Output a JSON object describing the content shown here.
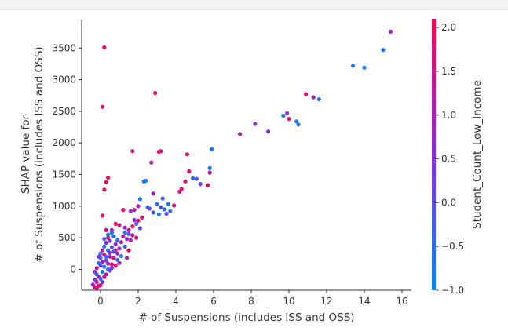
{
  "chart_data": {
    "type": "scatter",
    "title": "",
    "xlabel": "# of Suspensions (includes ISS and OSS)",
    "ylabel_lines": [
      "SHAP value for",
      "# of Suspensions (includes ISS and OSS)"
    ],
    "xlim": [
      -1,
      16.5
    ],
    "ylim": [
      -330,
      3950
    ],
    "xticks": [
      0,
      2,
      4,
      6,
      8,
      10,
      12,
      14,
      16
    ],
    "xtick_labels": [
      "0",
      "2",
      "4",
      "6",
      "8",
      "10",
      "12",
      "14",
      "16"
    ],
    "yticks": [
      0,
      500,
      1000,
      1500,
      2000,
      2500,
      3000,
      3500
    ],
    "ytick_labels": [
      "0",
      "500",
      "1000",
      "1500",
      "2000",
      "2500",
      "3000",
      "3500"
    ],
    "grid": false,
    "colorbar": {
      "label": "Student_Count_Low_Income",
      "range": [
        -1.0,
        2.1
      ],
      "ticks": [
        2.0,
        1.5,
        1.0,
        0.5,
        0.0,
        -0.5,
        -1.0
      ],
      "tick_labels": [
        "2.0",
        "1.5",
        "1.0",
        "0.5",
        "0.0",
        "−0.5",
        "−1.0"
      ],
      "color_low": "#008afb",
      "color_mid": "#8a2be2",
      "color_high": "#ff0052"
    },
    "points": [
      {
        "x": 15.4,
        "y": 3760,
        "c": 0.8
      },
      {
        "x": 15.0,
        "y": 3470,
        "c": -0.8
      },
      {
        "x": 13.4,
        "y": 3220,
        "c": -0.7
      },
      {
        "x": 14.0,
        "y": 3190,
        "c": -0.6
      },
      {
        "x": 0.2,
        "y": 3510,
        "c": 1.9
      },
      {
        "x": 0.1,
        "y": 2570,
        "c": 1.9
      },
      {
        "x": 2.9,
        "y": 2790,
        "c": 1.8
      },
      {
        "x": 10.9,
        "y": 2770,
        "c": 1.9
      },
      {
        "x": 11.3,
        "y": 2720,
        "c": 0.8
      },
      {
        "x": 11.6,
        "y": 2690,
        "c": -0.6
      },
      {
        "x": 9.9,
        "y": 2470,
        "c": 0.6
      },
      {
        "x": 9.7,
        "y": 2430,
        "c": -0.7
      },
      {
        "x": 10.0,
        "y": 2380,
        "c": 1.7
      },
      {
        "x": 10.4,
        "y": 2340,
        "c": -0.8
      },
      {
        "x": 10.5,
        "y": 2290,
        "c": -0.5
      },
      {
        "x": 8.2,
        "y": 2300,
        "c": 0.7
      },
      {
        "x": 8.9,
        "y": 2180,
        "c": 0.6
      },
      {
        "x": 7.4,
        "y": 2140,
        "c": 0.9
      },
      {
        "x": 5.9,
        "y": 1900,
        "c": -0.8
      },
      {
        "x": 1.7,
        "y": 1870,
        "c": 1.6
      },
      {
        "x": 3.1,
        "y": 1860,
        "c": 1.9
      },
      {
        "x": 3.2,
        "y": 1870,
        "c": 1.8
      },
      {
        "x": 4.6,
        "y": 1820,
        "c": 1.9
      },
      {
        "x": 2.7,
        "y": 1690,
        "c": 1.2
      },
      {
        "x": 5.8,
        "y": 1600,
        "c": -0.8
      },
      {
        "x": 5.8,
        "y": 1530,
        "c": 1.1
      },
      {
        "x": 4.7,
        "y": 1550,
        "c": 1.6
      },
      {
        "x": 4.9,
        "y": 1440,
        "c": -0.4
      },
      {
        "x": 5.1,
        "y": 1430,
        "c": -0.2
      },
      {
        "x": 4.5,
        "y": 1390,
        "c": 1.4
      },
      {
        "x": 5.3,
        "y": 1350,
        "c": 0.2
      },
      {
        "x": 5.7,
        "y": 1330,
        "c": 1.9
      },
      {
        "x": 4.3,
        "y": 1270,
        "c": 1.8
      },
      {
        "x": 4.2,
        "y": 1230,
        "c": 1.6
      },
      {
        "x": 0.4,
        "y": 1450,
        "c": 1.9
      },
      {
        "x": 0.3,
        "y": 1380,
        "c": 1.8
      },
      {
        "x": 0.2,
        "y": 1260,
        "c": 1.9
      },
      {
        "x": 2.4,
        "y": 1400,
        "c": -0.8
      },
      {
        "x": 2.3,
        "y": 1390,
        "c": -0.6
      },
      {
        "x": 2.8,
        "y": 1200,
        "c": 0.9
      },
      {
        "x": 3.3,
        "y": 1120,
        "c": -0.4
      },
      {
        "x": 2.1,
        "y": 1110,
        "c": -0.6
      },
      {
        "x": 3.0,
        "y": 1030,
        "c": -0.5
      },
      {
        "x": 3.6,
        "y": 1030,
        "c": -0.7
      },
      {
        "x": 3.9,
        "y": 1010,
        "c": 1.5
      },
      {
        "x": 2.5,
        "y": 980,
        "c": -0.8
      },
      {
        "x": 2.6,
        "y": 960,
        "c": 0.3
      },
      {
        "x": 3.2,
        "y": 980,
        "c": 0.0
      },
      {
        "x": 3.4,
        "y": 950,
        "c": -0.6
      },
      {
        "x": 3.7,
        "y": 920,
        "c": -0.7
      },
      {
        "x": 3.5,
        "y": 880,
        "c": 0.4
      },
      {
        "x": 2.8,
        "y": 900,
        "c": -0.3
      },
      {
        "x": 3.1,
        "y": 870,
        "c": -0.8
      },
      {
        "x": 1.8,
        "y": 940,
        "c": 1.1
      },
      {
        "x": 1.6,
        "y": 920,
        "c": 0.8
      },
      {
        "x": 2.0,
        "y": 1000,
        "c": 1.2
      },
      {
        "x": 1.2,
        "y": 940,
        "c": 1.9
      },
      {
        "x": 0.1,
        "y": 850,
        "c": 1.9
      },
      {
        "x": 0.8,
        "y": 720,
        "c": 1.8
      },
      {
        "x": 1.0,
        "y": 700,
        "c": 1.5
      },
      {
        "x": 1.3,
        "y": 660,
        "c": 0.9
      },
      {
        "x": 1.5,
        "y": 620,
        "c": 1.3
      },
      {
        "x": 2.0,
        "y": 770,
        "c": 1.6
      },
      {
        "x": 2.2,
        "y": 820,
        "c": 1.7
      },
      {
        "x": 1.7,
        "y": 540,
        "c": 1.4
      },
      {
        "x": 1.9,
        "y": 500,
        "c": 1.6
      },
      {
        "x": 1.6,
        "y": 460,
        "c": 1.1
      },
      {
        "x": 1.4,
        "y": 480,
        "c": 0.7
      },
      {
        "x": 1.2,
        "y": 520,
        "c": 1.5
      },
      {
        "x": 1.1,
        "y": 430,
        "c": 1.2
      },
      {
        "x": 0.9,
        "y": 460,
        "c": -0.5
      },
      {
        "x": 0.8,
        "y": 400,
        "c": 0.6
      },
      {
        "x": 0.7,
        "y": 520,
        "c": -0.8
      },
      {
        "x": 0.6,
        "y": 580,
        "c": -0.6
      },
      {
        "x": 0.5,
        "y": 450,
        "c": 0.3
      },
      {
        "x": 0.4,
        "y": 500,
        "c": 1.9
      },
      {
        "x": 0.3,
        "y": 420,
        "c": 0.8
      },
      {
        "x": 0.2,
        "y": 360,
        "c": -0.7
      },
      {
        "x": 0.1,
        "y": 300,
        "c": 1.3
      },
      {
        "x": 0.0,
        "y": 250,
        "c": -0.4
      },
      {
        "x": 0.2,
        "y": 230,
        "c": 1.7
      },
      {
        "x": 0.4,
        "y": 300,
        "c": -0.8
      },
      {
        "x": 0.6,
        "y": 350,
        "c": 0.1
      },
      {
        "x": 0.8,
        "y": 300,
        "c": 1.4
      },
      {
        "x": 1.0,
        "y": 330,
        "c": 0.5
      },
      {
        "x": 1.3,
        "y": 360,
        "c": -0.3
      },
      {
        "x": 1.5,
        "y": 300,
        "c": 1.8
      },
      {
        "x": 0.5,
        "y": 200,
        "c": 0.9
      },
      {
        "x": 0.7,
        "y": 180,
        "c": 1.6
      },
      {
        "x": 0.9,
        "y": 150,
        "c": -0.6
      },
      {
        "x": 0.3,
        "y": 140,
        "c": 0.4
      },
      {
        "x": 0.1,
        "y": 120,
        "c": 1.1
      },
      {
        "x": -0.1,
        "y": 100,
        "c": -0.7
      },
      {
        "x": 0.0,
        "y": 60,
        "c": 0.2
      },
      {
        "x": -0.2,
        "y": 20,
        "c": 1.5
      },
      {
        "x": 0.2,
        "y": 40,
        "c": -0.9
      },
      {
        "x": 0.4,
        "y": 90,
        "c": 0.7
      },
      {
        "x": 0.6,
        "y": 80,
        "c": 1.9
      },
      {
        "x": 0.8,
        "y": 60,
        "c": 1.8
      },
      {
        "x": 1.0,
        "y": 100,
        "c": 1.2
      },
      {
        "x": -0.3,
        "y": -40,
        "c": 0.6
      },
      {
        "x": -0.2,
        "y": -80,
        "c": -0.5
      },
      {
        "x": -0.1,
        "y": -120,
        "c": 1.0
      },
      {
        "x": -0.3,
        "y": -160,
        "c": 0.3
      },
      {
        "x": -0.2,
        "y": -200,
        "c": 1.6
      },
      {
        "x": -0.4,
        "y": -240,
        "c": 0.8
      },
      {
        "x": -0.3,
        "y": -280,
        "c": 1.9
      },
      {
        "x": -0.1,
        "y": -260,
        "c": 1.7
      },
      {
        "x": 0.0,
        "y": -250,
        "c": 1.8
      },
      {
        "x": -0.2,
        "y": -300,
        "c": 1.4
      },
      {
        "x": 0.1,
        "y": -200,
        "c": 0.2
      },
      {
        "x": 0.2,
        "y": -120,
        "c": 1.5
      },
      {
        "x": 0.4,
        "y": 0,
        "c": -0.8
      },
      {
        "x": 0.6,
        "y": 20,
        "c": 0.4
      },
      {
        "x": 0.3,
        "y": 200,
        "c": -0.6
      },
      {
        "x": 0.5,
        "y": 260,
        "c": 0.6
      },
      {
        "x": 0.7,
        "y": 280,
        "c": -0.2
      },
      {
        "x": 0.9,
        "y": 250,
        "c": 1.3
      },
      {
        "x": 1.1,
        "y": 210,
        "c": -0.7
      },
      {
        "x": 1.4,
        "y": 180,
        "c": 0.9
      },
      {
        "x": 0.2,
        "y": 480,
        "c": -0.4
      },
      {
        "x": 0.4,
        "y": 550,
        "c": -0.7
      },
      {
        "x": 0.6,
        "y": 620,
        "c": 0.7
      },
      {
        "x": 0.3,
        "y": 620,
        "c": 1.6
      },
      {
        "x": 1.8,
        "y": 780,
        "c": 0.5
      },
      {
        "x": 1.9,
        "y": 720,
        "c": -0.6
      },
      {
        "x": 1.7,
        "y": 680,
        "c": 1.9
      },
      {
        "x": 2.1,
        "y": 650,
        "c": 0.2
      },
      {
        "x": 1.3,
        "y": 580,
        "c": -0.8
      },
      {
        "x": 1.5,
        "y": 560,
        "c": 0.0
      },
      {
        "x": 0.0,
        "y": 180,
        "c": -0.8
      },
      {
        "x": -0.1,
        "y": 200,
        "c": 0.5
      },
      {
        "x": 0.1,
        "y": -40,
        "c": -0.6
      },
      {
        "x": 0.3,
        "y": -80,
        "c": 1.2
      },
      {
        "x": 0.5,
        "y": -20,
        "c": 0.3
      },
      {
        "x": 0.0,
        "y": -150,
        "c": -0.3
      }
    ]
  }
}
